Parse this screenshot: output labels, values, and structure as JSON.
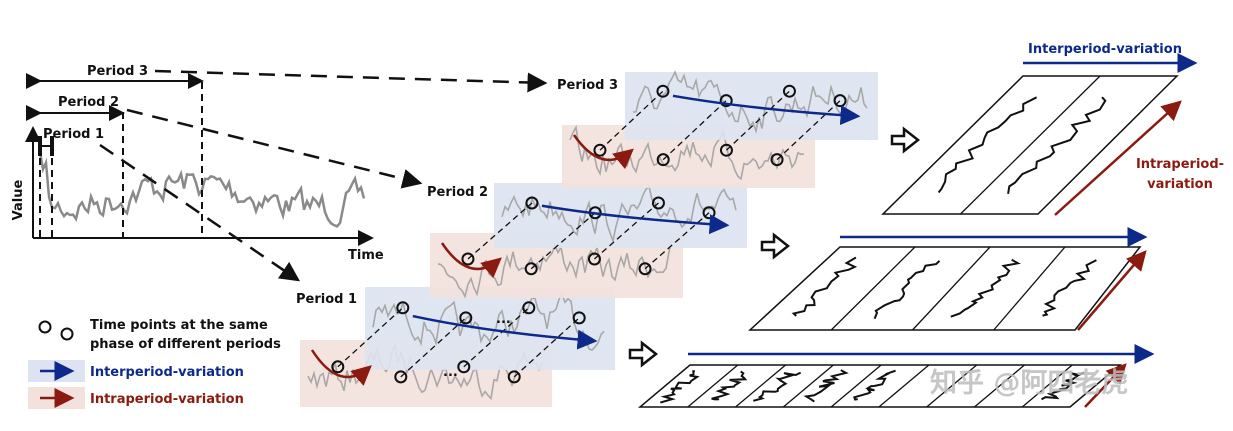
{
  "colors": {
    "inter": "#0d2a8a",
    "intra": "#8b1a10",
    "inter_bg": "#dde3f0",
    "intra_bg": "#f3e1dd",
    "series": "#8a8a8a"
  },
  "left_plot": {
    "ylabel": "Value",
    "xlabel": "Time"
  },
  "periods": {
    "p1": "Period 1",
    "p2": "Period 2",
    "p3": "Period 3"
  },
  "ellipsis": "...",
  "legend": {
    "points_line1": "Time points at the same",
    "points_line2": "phase of different periods",
    "inter": "Interperiod-variation",
    "intra": "Intraperiod-variation"
  },
  "right": {
    "inter_label": "Interperiod-variation",
    "intra_line1": "Intraperiod-",
    "intra_line2": "variation"
  },
  "watermark": "知乎 @阿四老虎"
}
